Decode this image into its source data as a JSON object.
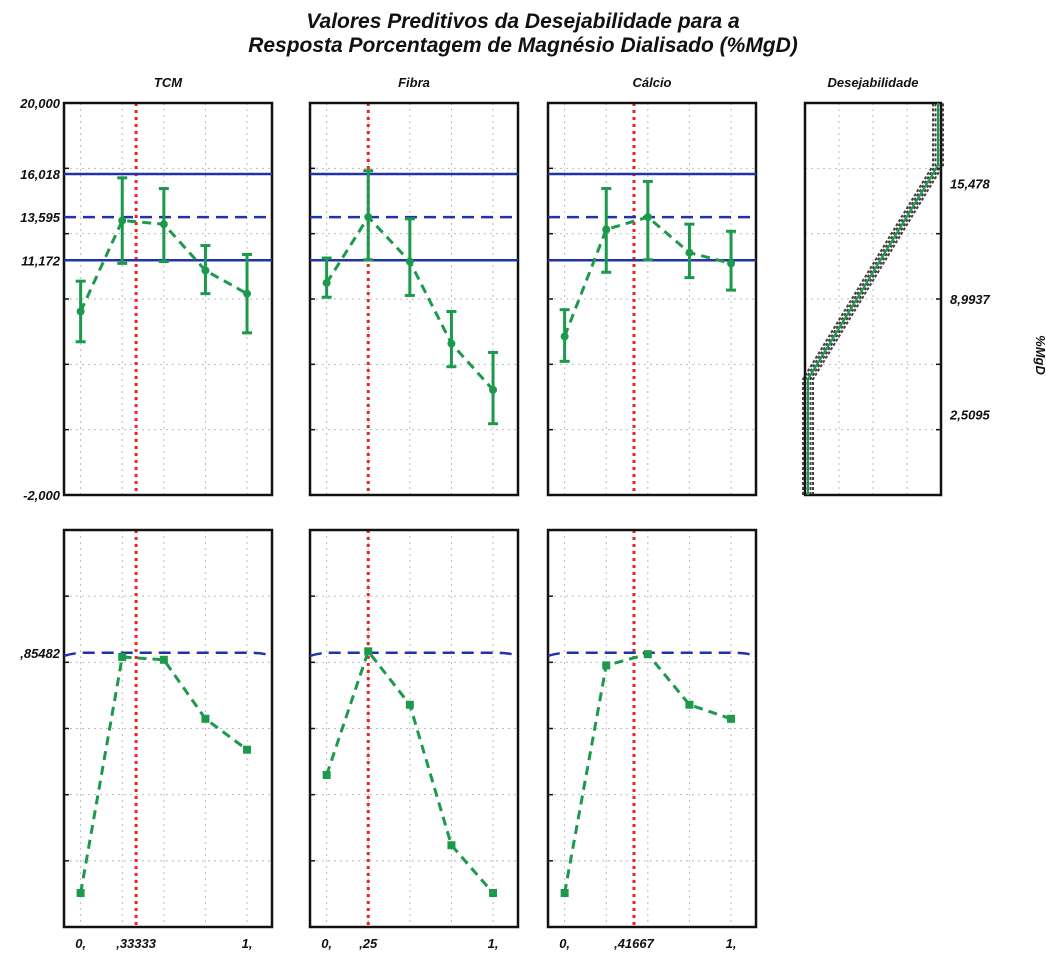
{
  "title": {
    "line1": "Valores Preditivos da Desejabilidade para a",
    "line2": "Resposta Porcentagem de Magnésio Dialisado (%MgD)"
  },
  "colors": {
    "data": "#1a9a4a",
    "limits": "#2233aa",
    "current": "#ee2222",
    "grid": "#bbbbbb"
  },
  "chart_data": {
    "type": "line",
    "response": {
      "ylim": [
        -2,
        20
      ],
      "y_ticks": [
        "20,000",
        "16,018",
        "13,595",
        "11,172",
        "-2,000"
      ],
      "y_tick_values": [
        20,
        16.018,
        13.595,
        11.172,
        -2
      ],
      "limits": {
        "upper": 16.018,
        "target": 13.595,
        "lower": 11.172
      }
    },
    "desirability": {
      "ylim": [
        0,
        1
      ],
      "y_ticks": [
        ",85482"
      ],
      "y_tick_values": [
        0.85482
      ],
      "overall": 0.85482
    },
    "factors": [
      {
        "name": "TCM",
        "x_ticks": [
          "0,",
          ",33333",
          "1,"
        ],
        "x_tick_values": [
          0,
          0.33333,
          1
        ],
        "current": 0.33333,
        "xlim": [
          -0.1,
          1.15
        ],
        "x": [
          0,
          0.25,
          0.5,
          0.75,
          1
        ],
        "y": [
          8.3,
          13.4,
          13.2,
          10.6,
          9.3
        ],
        "y_low": [
          6.6,
          11.0,
          11.1,
          9.3,
          7.1
        ],
        "y_high": [
          10.0,
          15.8,
          15.2,
          12.0,
          11.5
        ],
        "desirability": [
          0.0,
          0.84,
          0.83,
          0.62,
          0.51
        ]
      },
      {
        "name": "Fibra",
        "x_ticks": [
          "0,",
          ",25",
          "1,"
        ],
        "x_tick_values": [
          0,
          0.25,
          1
        ],
        "current": 0.25,
        "xlim": [
          -0.1,
          1.15
        ],
        "x": [
          0,
          0.25,
          0.5,
          0.75,
          1
        ],
        "y": [
          9.9,
          13.6,
          11.1,
          6.5,
          3.9
        ],
        "y_low": [
          9.1,
          11.2,
          9.2,
          5.2,
          2.0
        ],
        "y_high": [
          11.3,
          16.2,
          13.5,
          8.3,
          6.0
        ],
        "desirability": [
          0.42,
          0.86,
          0.67,
          0.17,
          0.0
        ]
      },
      {
        "name": "Cálcio",
        "x_ticks": [
          "0,",
          ",41667",
          "1,"
        ],
        "x_tick_values": [
          0,
          0.41667,
          1
        ],
        "current": 0.41667,
        "xlim": [
          -0.1,
          1.15
        ],
        "x": [
          0,
          0.25,
          0.5,
          0.75,
          1
        ],
        "y": [
          6.9,
          12.9,
          13.6,
          11.6,
          11.0
        ],
        "y_low": [
          5.5,
          10.5,
          11.2,
          10.2,
          9.5
        ],
        "y_high": [
          8.4,
          15.2,
          15.6,
          13.2,
          12.8
        ],
        "desirability": [
          0.0,
          0.81,
          0.85,
          0.67,
          0.62
        ]
      }
    ],
    "desirability_function": {
      "title": "Desejabilidade",
      "y_ticks": [
        "15,478",
        "8,9937",
        "2,5095"
      ],
      "y_tick_values": [
        15.478,
        8.9937,
        2.5095
      ],
      "axis_label": "%MgD",
      "breakpoints": [
        {
          "response": -2,
          "desirability": 0
        },
        {
          "response": 4.5,
          "desirability": 0
        },
        {
          "response": 16.5,
          "desirability": 1
        },
        {
          "response": 20,
          "desirability": 1
        }
      ]
    }
  }
}
